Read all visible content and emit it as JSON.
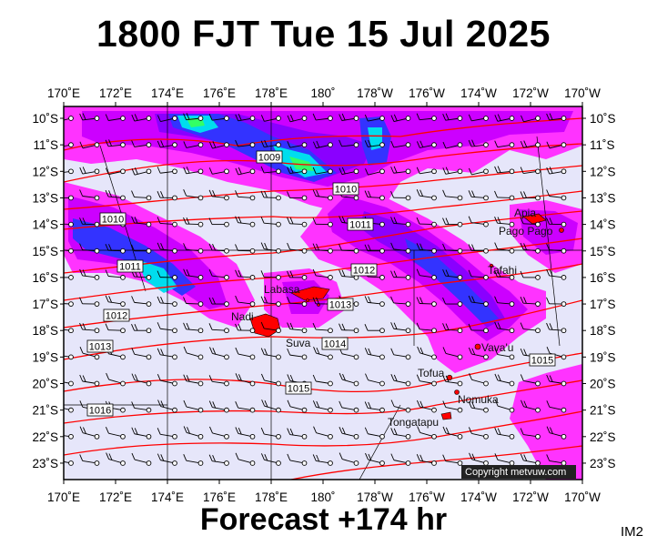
{
  "header": {
    "title": "1800 FJT Tue 15 Jul 2025"
  },
  "footer": {
    "forecast": "Forecast +174 hr",
    "corner_label": "IM2"
  },
  "copyright": "Copyright metvuw.com",
  "map": {
    "lon_labels": [
      "170˚E",
      "172˚E",
      "174˚E",
      "176˚E",
      "178˚E",
      "180˚",
      "178˚W",
      "176˚W",
      "174˚W",
      "172˚W",
      "170˚W"
    ],
    "lat_labels": [
      "10˚S",
      "11˚S",
      "12˚S",
      "13˚S",
      "14˚S",
      "15˚S",
      "16˚S",
      "17˚S",
      "18˚S",
      "19˚S",
      "20˚S",
      "21˚S",
      "22˚S",
      "23˚S"
    ],
    "isobar_labels": [
      "1009",
      "1010",
      "1010",
      "1011",
      "1011",
      "1012",
      "1012",
      "1013",
      "1013",
      "1014",
      "1015",
      "1015",
      "1016"
    ],
    "places": [
      "Apia",
      "Pago Pago",
      "Tafahi",
      "Labasa",
      "Nadi",
      "Suva",
      "Vava'u",
      "Tofua",
      "Nomuka",
      "Tongatapu"
    ],
    "colors": {
      "background": "#e6e6fa",
      "precip_light": "#ff33ff",
      "precip_mid": "#cc00ff",
      "precip_heavy": "#8a00ff",
      "precip_blue": "#3333ff",
      "precip_cyan": "#00ddee",
      "precip_green": "#33ff66",
      "isobar": "#ff0000",
      "land": "#ff0000"
    }
  }
}
